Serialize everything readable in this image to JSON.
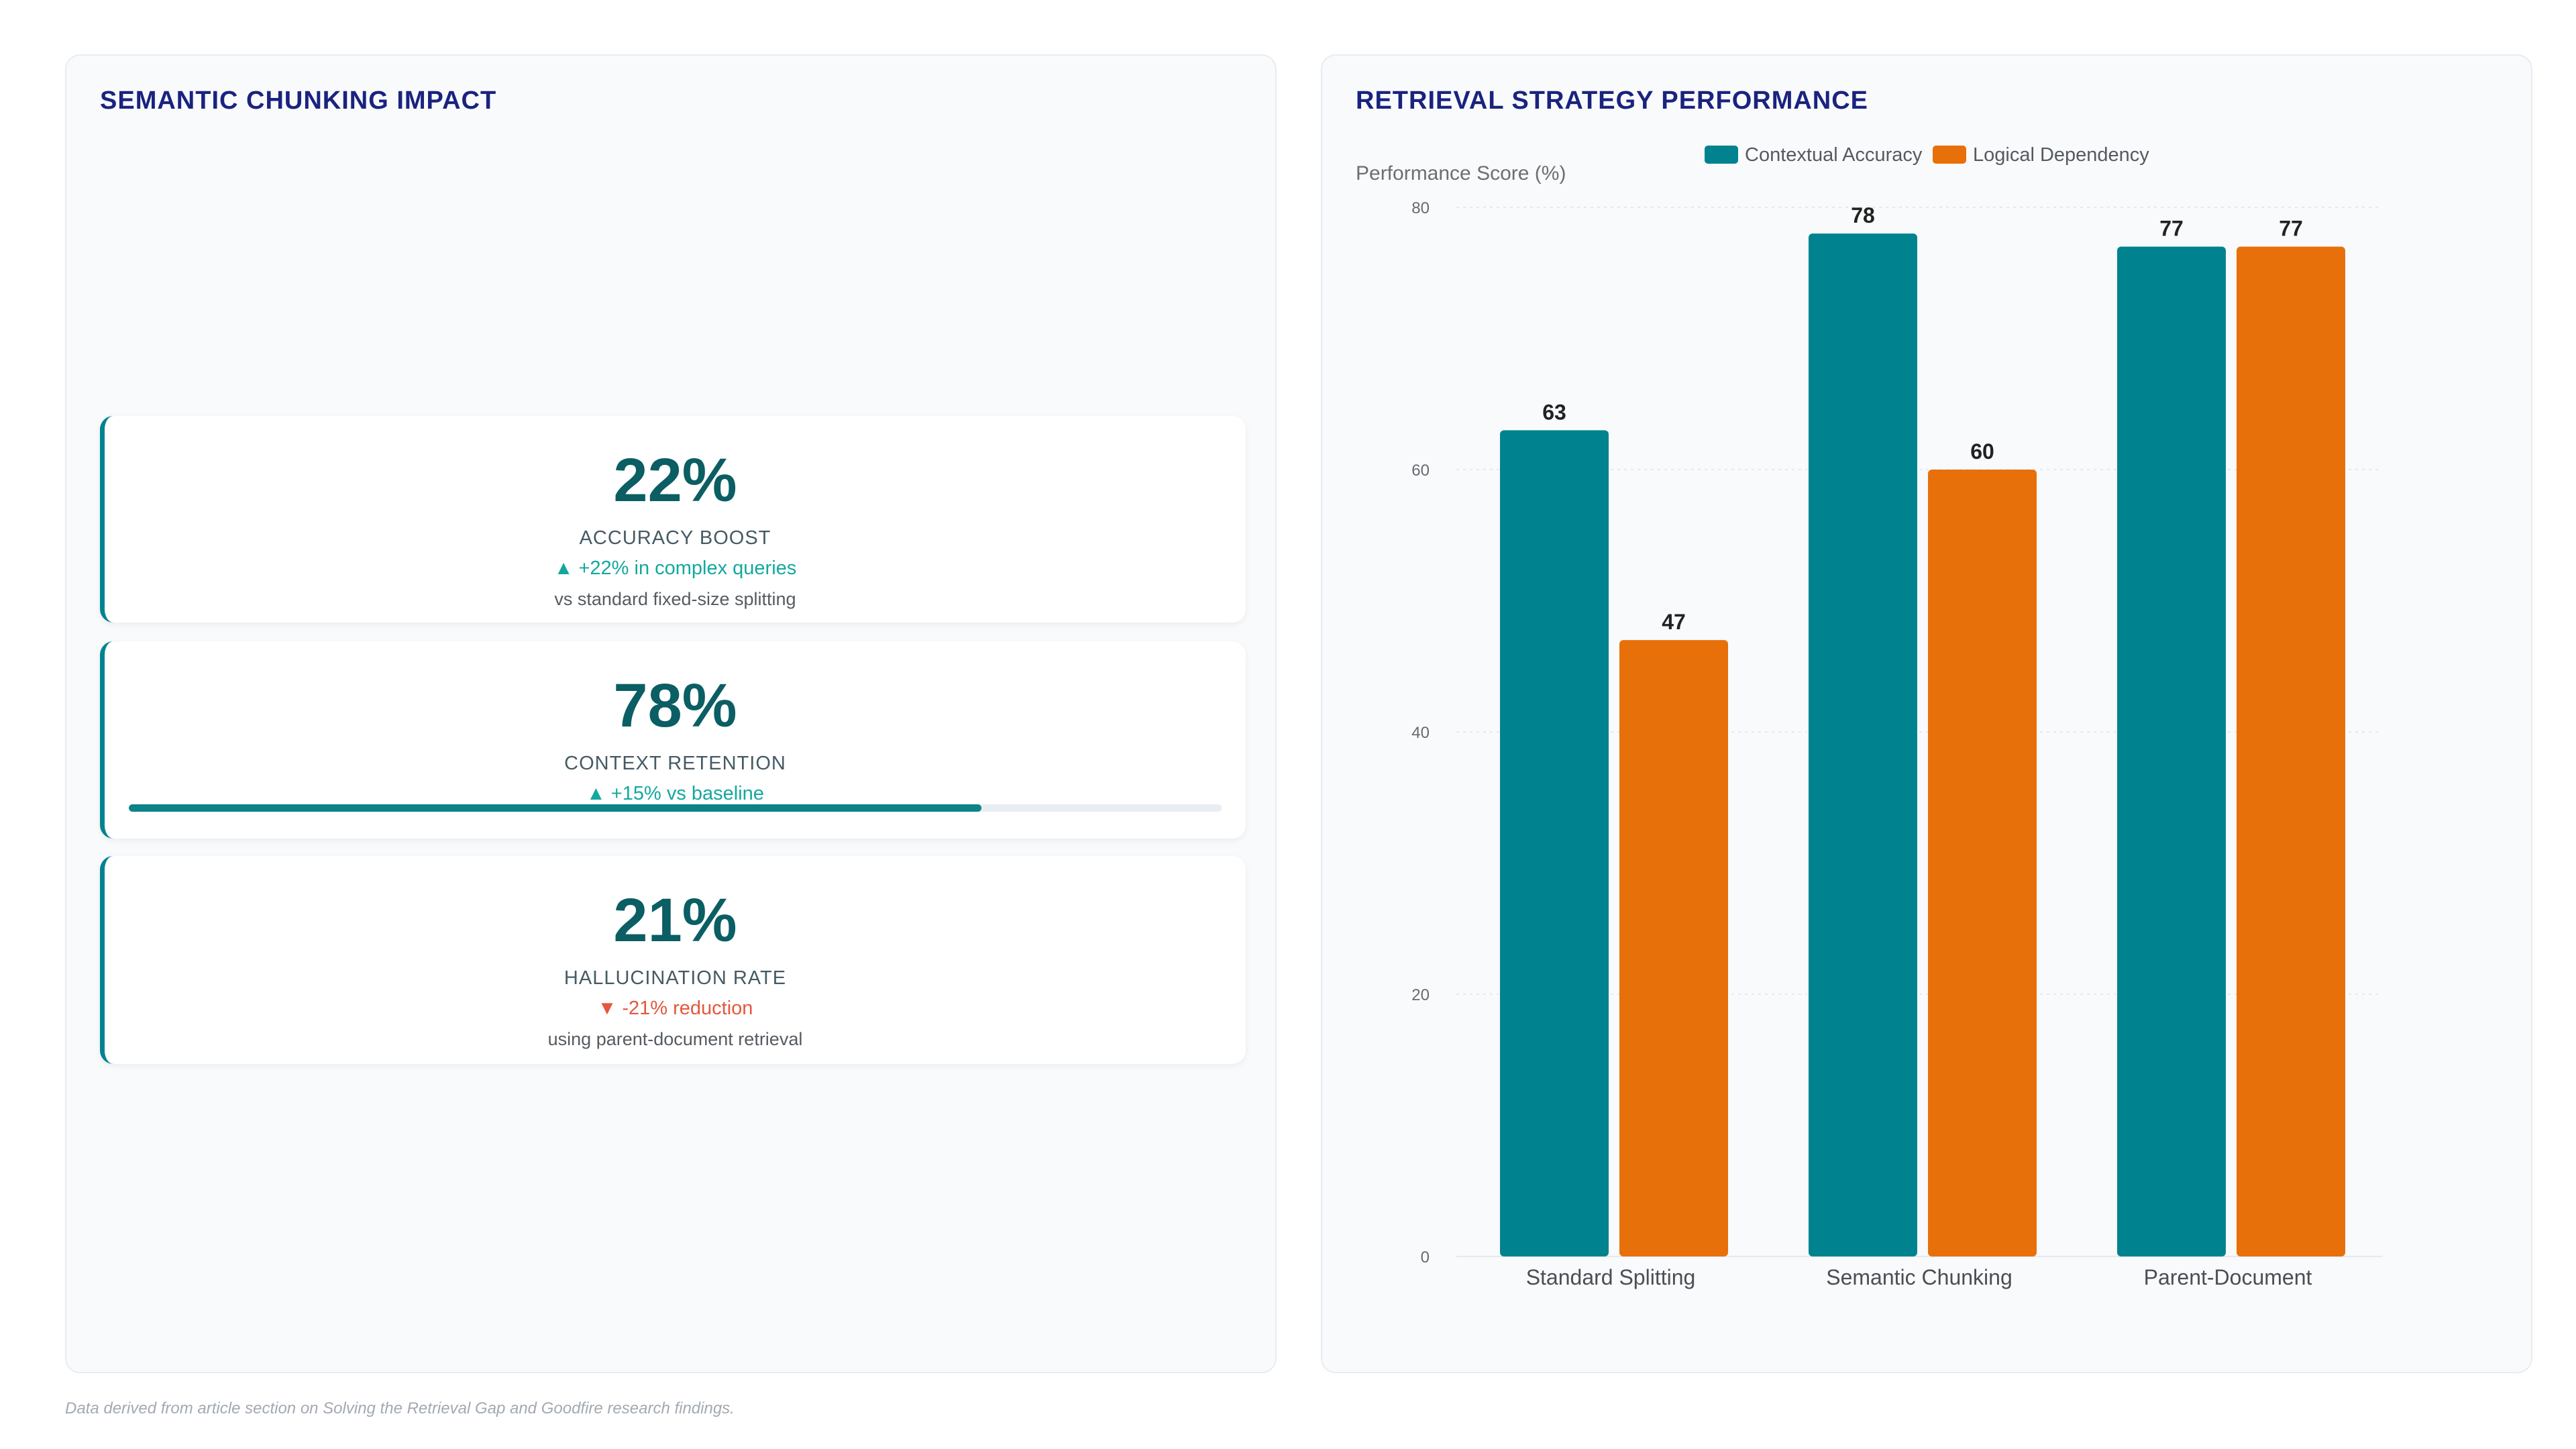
{
  "left_panel": {
    "title": "SEMANTIC CHUNKING IMPACT",
    "kpis": [
      {
        "value": "22%",
        "label": "ACCURACY BOOST",
        "delta": "▲ +22% in complex queries",
        "delta_dir": "up",
        "note": "vs standard fixed-size splitting"
      },
      {
        "value": "78%",
        "label": "CONTEXT RETENTION",
        "delta": "▲ +15% vs baseline",
        "delta_dir": "up",
        "progress": 0.78
      },
      {
        "value": "21%",
        "label": "HALLUCINATION RATE",
        "delta": "▼ -21% reduction",
        "delta_dir": "down",
        "note": "using parent-document retrieval"
      }
    ]
  },
  "right_panel": {
    "title": "RETRIEVAL STRATEGY PERFORMANCE"
  },
  "chart_data": {
    "type": "bar",
    "categories": [
      "Standard Splitting",
      "Semantic Chunking",
      "Parent-Document"
    ],
    "series": [
      {
        "name": "Contextual Accuracy",
        "values": [
          63,
          78,
          77
        ],
        "color": "#00838f"
      },
      {
        "name": "Logical Dependency",
        "values": [
          47,
          60,
          77
        ],
        "color": "#e8700a"
      }
    ],
    "ylabel": "Performance Score (%)",
    "ylim": [
      0,
      80
    ],
    "yticks": [
      0,
      20,
      40,
      60,
      80
    ],
    "grid": true,
    "legend": "top-center",
    "data_labels": true
  },
  "footnote": "Data derived from article section on Solving the Retrieval Gap and Goodfire research findings."
}
